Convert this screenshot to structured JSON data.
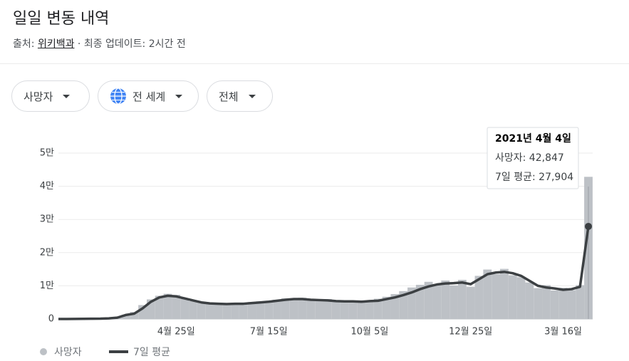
{
  "header": {
    "title": "일일 변동 내역",
    "source_prefix": "출처:",
    "source_link": "위키백과",
    "updated": "· 최종 업데이트: 2시간 전"
  },
  "filters": [
    "사망자",
    "전 세계",
    "전체"
  ],
  "chart_data": {
    "type": "bar-line",
    "categories": [
      null,
      null,
      null,
      null,
      null,
      null,
      null,
      null,
      null,
      null,
      null,
      null,
      null,
      null,
      "4월 25일",
      null,
      null,
      null,
      null,
      null,
      null,
      null,
      null,
      null,
      null,
      "7월 15일",
      null,
      null,
      null,
      null,
      null,
      null,
      null,
      null,
      null,
      null,
      null,
      "10월 5일",
      null,
      null,
      null,
      null,
      null,
      null,
      null,
      null,
      null,
      null,
      null,
      "12월 25일",
      null,
      null,
      null,
      null,
      null,
      null,
      null,
      null,
      null,
      null,
      "3월 16일",
      null,
      null,
      null
    ],
    "series": [
      {
        "name": "사망자",
        "color": "#bdc1c6",
        "values": [
          0,
          20,
          30,
          60,
          90,
          120,
          250,
          500,
          1300,
          2100,
          4200,
          5900,
          7000,
          7600,
          7300,
          6100,
          5400,
          5200,
          4800,
          4700,
          4400,
          4900,
          4500,
          5100,
          5300,
          5000,
          5800,
          6200,
          5900,
          6400,
          5700,
          5600,
          6000,
          5300,
          5500,
          5100,
          5600,
          5300,
          6100,
          6700,
          7500,
          8400,
          9500,
          10300,
          11200,
          10400,
          11600,
          10100,
          11800,
          9700,
          13000,
          14900,
          13500,
          15100,
          13200,
          12600,
          11000,
          9300,
          10200,
          8600,
          9400,
          8700,
          10200,
          42847
        ]
      },
      {
        "name": "7일 평균",
        "color": "#3c4043",
        "values": [
          0,
          10,
          20,
          50,
          80,
          100,
          200,
          400,
          1200,
          1600,
          3200,
          5200,
          6500,
          7000,
          6800,
          6200,
          5600,
          5000,
          4700,
          4600,
          4500,
          4600,
          4600,
          4800,
          5000,
          5200,
          5500,
          5800,
          6000,
          6000,
          5800,
          5700,
          5600,
          5400,
          5300,
          5300,
          5200,
          5400,
          5500,
          6000,
          6500,
          7200,
          8000,
          9000,
          9800,
          10400,
          10700,
          10800,
          11000,
          10500,
          12000,
          13500,
          14000,
          14200,
          13800,
          13000,
          11500,
          10000,
          9500,
          9200,
          8800,
          9000,
          9700,
          27904
        ]
      }
    ],
    "ylim": [
      0,
      50000
    ],
    "yticks": [
      0,
      {
        "value": 10000,
        "label": "1만"
      },
      {
        "value": 20000,
        "label": "2만"
      },
      {
        "value": 30000,
        "label": "3만"
      },
      {
        "value": 40000,
        "label": "4만"
      },
      {
        "value": 50000,
        "label": "5만"
      }
    ],
    "grid": true,
    "tooltip": {
      "title": "2021년 4월 4일",
      "rows": [
        "사망자: 42,847",
        "7일 평균: 27,904"
      ]
    }
  }
}
